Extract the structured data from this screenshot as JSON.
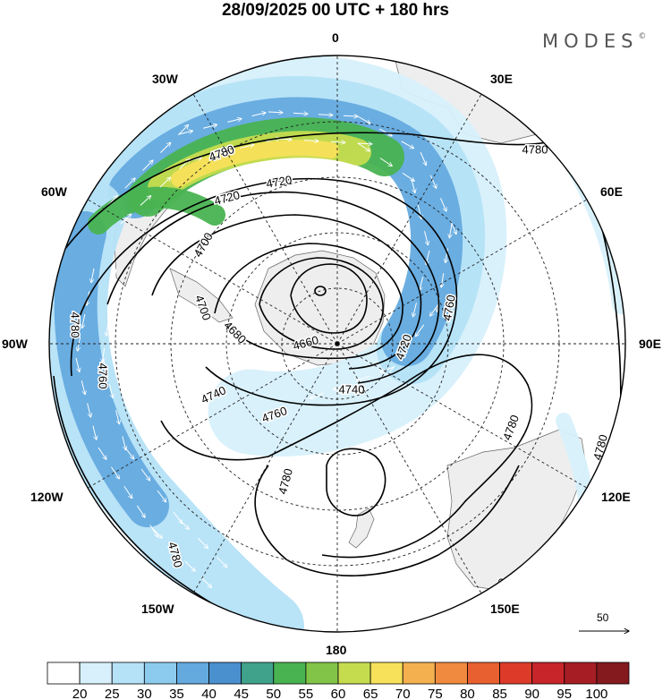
{
  "title": "28/09/2025  00 UTC  + 180 hrs",
  "brand": {
    "name": "MODES",
    "mark": "©"
  },
  "longitude_labels": {
    "n0": "0",
    "n30e": "30E",
    "n60e": "60E",
    "n90e": "90E",
    "n120e": "120E",
    "n150e": "150E",
    "n180": "180",
    "n150w": "150W",
    "n120w": "120W",
    "n90w": "90W",
    "n60w": "60W",
    "n30w": "30W"
  },
  "contour_labels": [
    "4780",
    "4720",
    "4720",
    "4700",
    "4700",
    "4680",
    "4660",
    "4720",
    "4740",
    "4740",
    "4760",
    "4760",
    "4780",
    "4780",
    "4780",
    "4780",
    "4780",
    "4780",
    "4760",
    "4780"
  ],
  "vector_reference": "50",
  "colorbar": {
    "labels": [
      "20",
      "25",
      "30",
      "35",
      "40",
      "45",
      "50",
      "55",
      "60",
      "65",
      "70",
      "75",
      "80",
      "85",
      "90",
      "95",
      "100"
    ],
    "colors": [
      "#ffffff",
      "#d7f0fb",
      "#b5e2f7",
      "#8ccbee",
      "#64aadf",
      "#4a90cf",
      "#41a28b",
      "#49b351",
      "#82c447",
      "#c6dc4f",
      "#f7e15a",
      "#f4b04f",
      "#f08a3e",
      "#e8602f",
      "#de3a2a",
      "#c8252a",
      "#a61d24",
      "#841a1e"
    ]
  },
  "layers": {
    "jet_colors": {
      "c25": "#d7f0fb",
      "c30": "#b5e2f7",
      "c35": "#8ccbee",
      "c40": "#64aadf",
      "c45": "#4a90cf",
      "c55": "#49b351",
      "c60": "#82c447",
      "c65": "#c6dc4f",
      "c70": "#f7e15a"
    },
    "land_color": "#eeeeee"
  }
}
